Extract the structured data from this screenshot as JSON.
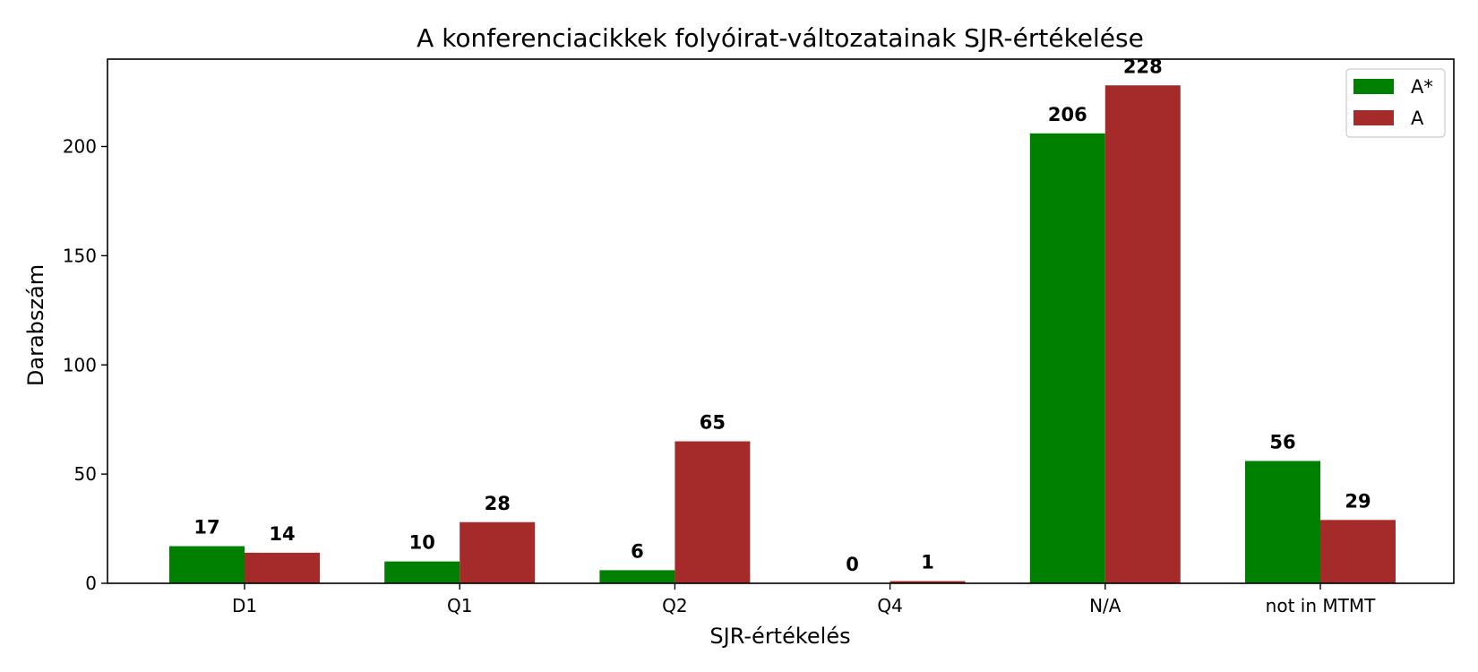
{
  "chart_data": {
    "type": "bar",
    "title": "A konferenciacikkek folyóirat-változatainak SJR-értékelése",
    "xlabel": "SJR-értékelés",
    "ylabel": "Darabszám",
    "categories": [
      "D1",
      "Q1",
      "Q2",
      "Q4",
      "N/A",
      "not in MTMT"
    ],
    "series": [
      {
        "name": "A*",
        "color": "#008000",
        "values": [
          17,
          10,
          6,
          0,
          206,
          56
        ]
      },
      {
        "name": "A",
        "color": "#a52a2a",
        "values": [
          14,
          28,
          65,
          1,
          228,
          29
        ]
      }
    ],
    "ylim": [
      0,
      240
    ],
    "yticks": [
      0,
      50,
      100,
      150,
      200
    ],
    "grid": false,
    "legend": "top-right",
    "data_labels": true
  }
}
